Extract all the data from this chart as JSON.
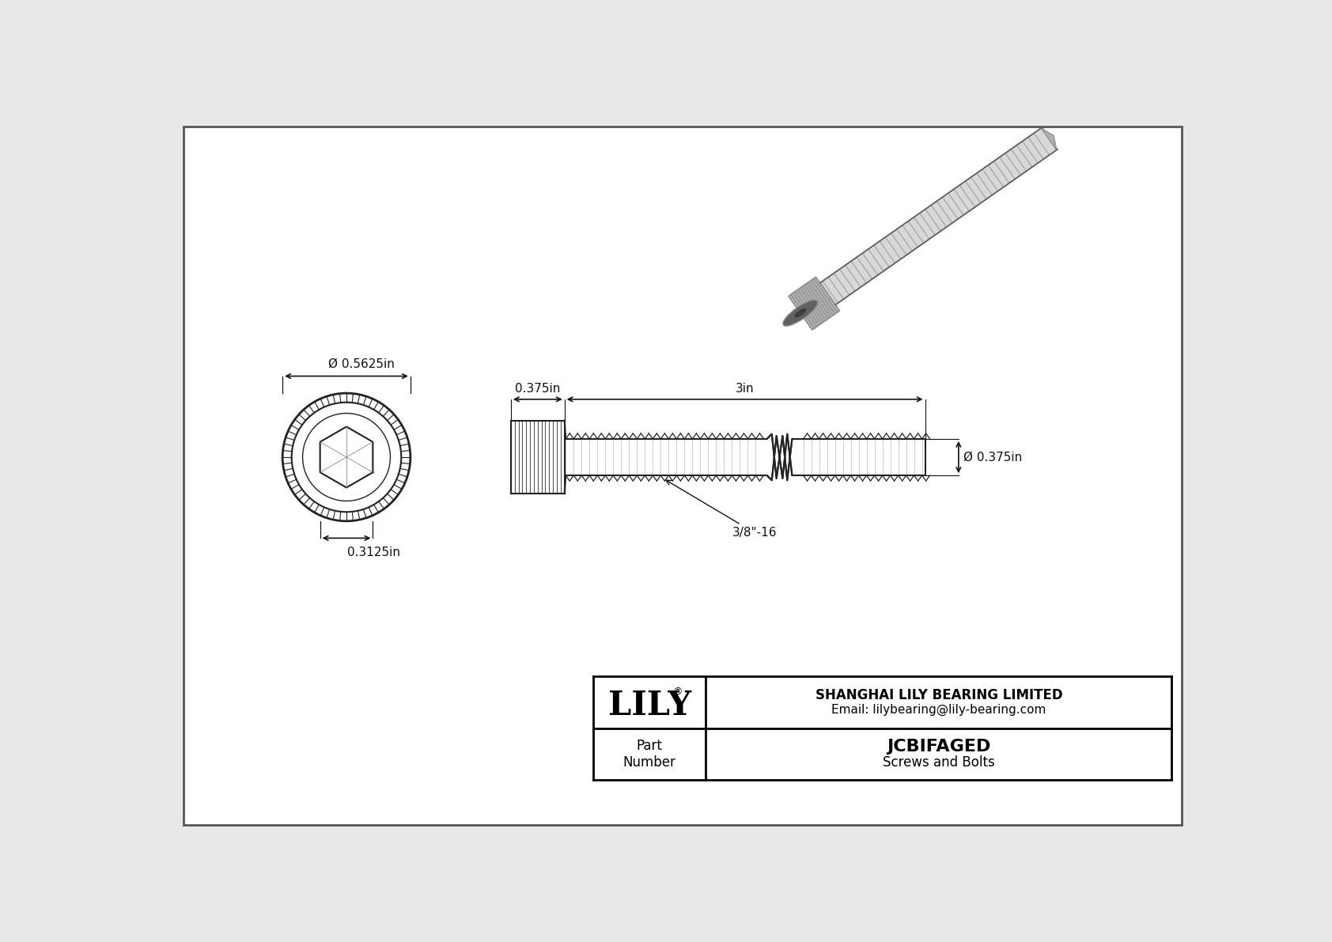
{
  "bg_color": "#e8e8e8",
  "border_color": "#555555",
  "line_color": "#222222",
  "dim_color": "#111111",
  "title": "JCBIFAGED",
  "subtitle": "Screws and Bolts",
  "company": "SHANGHAI LILY BEARING LIMITED",
  "email": "Email: lilybearing@lily-bearing.com",
  "part_label": "Part\nNumber",
  "dim_head_diameter": "Ø 0.5625in",
  "dim_hex_width": "0.3125in",
  "dim_head_length": "0.375in",
  "dim_thread_length": "3in",
  "dim_body_diameter": "Ø 0.375in",
  "dim_thread_spec": "3/8\"-16",
  "logo_text": "LILY",
  "logo_sup": "®"
}
